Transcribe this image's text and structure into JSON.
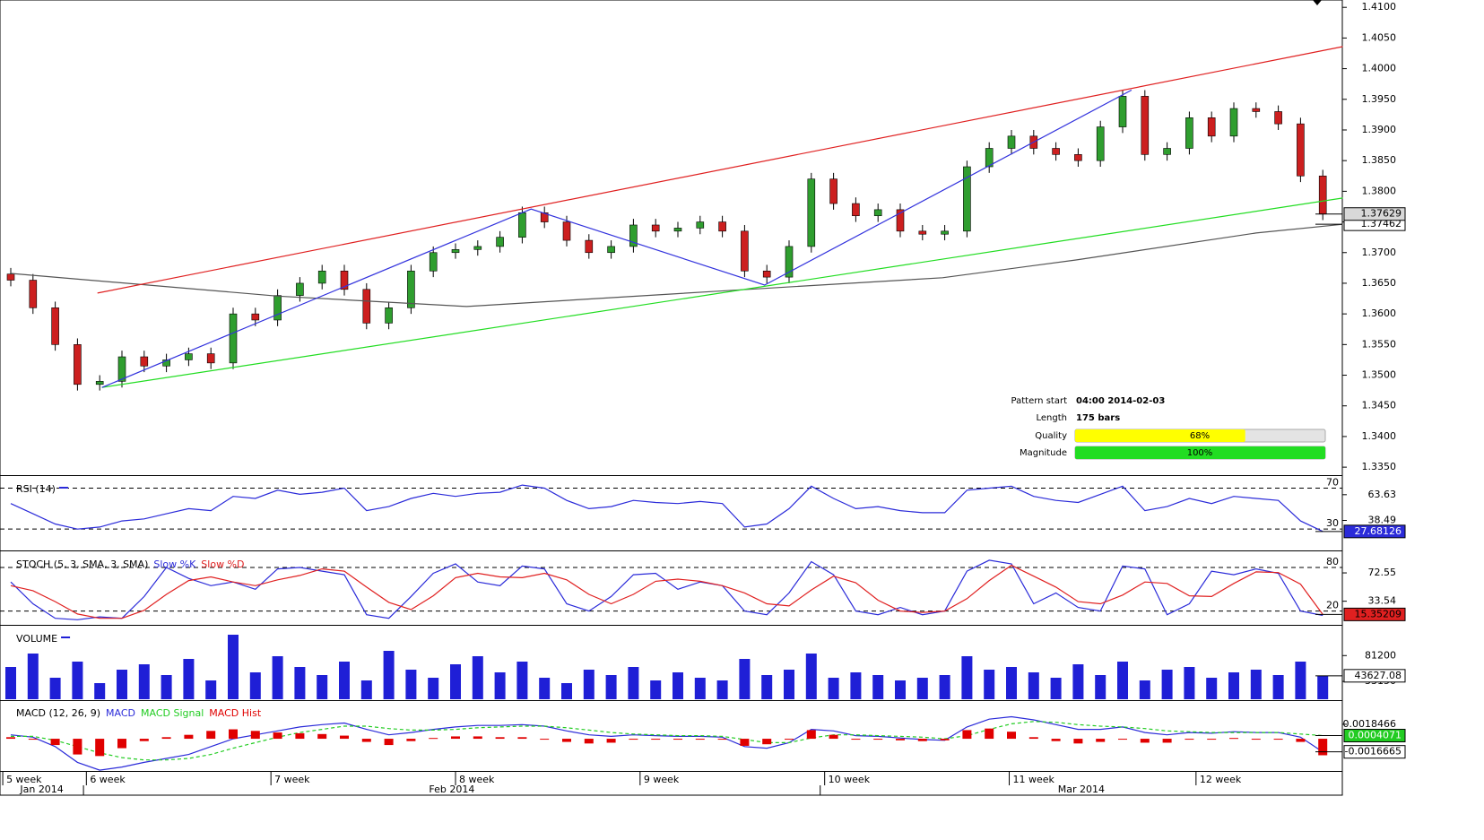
{
  "chart_data": [
    {
      "type": "candlestick",
      "up_color": "#2f9e2f",
      "down_color": "#cc1f1f",
      "open": [
        1.3665,
        1.3655,
        1.361,
        1.355,
        1.3485,
        1.349,
        1.353,
        1.3515,
        1.3525,
        1.3535,
        1.352,
        1.36,
        1.359,
        1.363,
        1.365,
        1.367,
        1.364,
        1.3585,
        1.361,
        1.367,
        1.37,
        1.3705,
        1.371,
        1.3725,
        1.3765,
        1.375,
        1.372,
        1.37,
        1.371,
        1.3745,
        1.3735,
        1.374,
        1.375,
        1.3735,
        1.367,
        1.366,
        1.371,
        1.382,
        1.378,
        1.376,
        1.377,
        1.3735,
        1.373,
        1.3735,
        1.384,
        1.387,
        1.389,
        1.387,
        1.386,
        1.385,
        1.3905,
        1.3955,
        1.386,
        1.387,
        1.392,
        1.389,
        1.3935,
        1.393,
        1.391,
        1.3825
      ],
      "high": [
        1.3675,
        1.3665,
        1.362,
        1.356,
        1.35,
        1.354,
        1.354,
        1.3535,
        1.3545,
        1.3545,
        1.361,
        1.361,
        1.364,
        1.366,
        1.368,
        1.368,
        1.365,
        1.362,
        1.368,
        1.371,
        1.3715,
        1.372,
        1.3735,
        1.3775,
        1.3775,
        1.376,
        1.373,
        1.372,
        1.3755,
        1.3755,
        1.375,
        1.376,
        1.376,
        1.3745,
        1.368,
        1.372,
        1.383,
        1.383,
        1.379,
        1.378,
        1.378,
        1.3745,
        1.3745,
        1.385,
        1.388,
        1.39,
        1.39,
        1.388,
        1.387,
        1.3915,
        1.3965,
        1.3965,
        1.388,
        1.393,
        1.393,
        1.3945,
        1.3945,
        1.394,
        1.392,
        1.3835
      ],
      "low": [
        1.3645,
        1.36,
        1.354,
        1.3475,
        1.3475,
        1.348,
        1.3505,
        1.3505,
        1.3515,
        1.351,
        1.351,
        1.358,
        1.358,
        1.362,
        1.364,
        1.363,
        1.3575,
        1.3575,
        1.36,
        1.366,
        1.369,
        1.3695,
        1.37,
        1.3715,
        1.374,
        1.371,
        1.369,
        1.369,
        1.37,
        1.3725,
        1.3725,
        1.373,
        1.3725,
        1.366,
        1.365,
        1.365,
        1.37,
        1.377,
        1.375,
        1.375,
        1.3725,
        1.372,
        1.372,
        1.3725,
        1.383,
        1.386,
        1.386,
        1.385,
        1.384,
        1.384,
        1.3895,
        1.385,
        1.385,
        1.386,
        1.388,
        1.388,
        1.392,
        1.39,
        1.3815,
        1.3753
      ],
      "close": [
        1.3655,
        1.361,
        1.355,
        1.3485,
        1.349,
        1.353,
        1.3515,
        1.3525,
        1.3535,
        1.352,
        1.36,
        1.359,
        1.363,
        1.365,
        1.367,
        1.364,
        1.3585,
        1.361,
        1.367,
        1.37,
        1.3705,
        1.371,
        1.3725,
        1.3765,
        1.375,
        1.372,
        1.37,
        1.371,
        1.3745,
        1.3735,
        1.374,
        1.375,
        1.3735,
        1.367,
        1.366,
        1.371,
        1.382,
        1.378,
        1.376,
        1.377,
        1.3735,
        1.373,
        1.3735,
        1.384,
        1.387,
        1.389,
        1.387,
        1.386,
        1.385,
        1.3905,
        1.3955,
        1.386,
        1.387,
        1.392,
        1.389,
        1.3935,
        1.393,
        1.391,
        1.3825,
        1.37629
      ],
      "close_box_color": "#d8d8d8",
      "ylim": [
        1.3337,
        1.4112
      ],
      "yticks": [
        {
          "value": 1.41,
          "label": "1.4100"
        },
        {
          "value": 1.405,
          "label": "1.4050"
        },
        {
          "value": 1.4,
          "label": "1.4000"
        },
        {
          "value": 1.395,
          "label": "1.3950"
        },
        {
          "value": 1.39,
          "label": "1.3900"
        },
        {
          "value": 1.385,
          "label": "1.3850"
        },
        {
          "value": 1.38,
          "label": "1.3800"
        },
        {
          "value": 1.375,
          "label": "1.3750"
        },
        {
          "value": 1.37,
          "label": "1.3700"
        },
        {
          "value": 1.365,
          "label": "1.3650"
        },
        {
          "value": 1.36,
          "label": "1.3600"
        },
        {
          "value": 1.355,
          "label": "1.3550"
        },
        {
          "value": 1.35,
          "label": "1.3500"
        },
        {
          "value": 1.345,
          "label": "1.3450"
        },
        {
          "value": 1.34,
          "label": "1.3400"
        },
        {
          "value": 1.335,
          "label": "1.3350"
        }
      ],
      "overlays": [
        {
          "color": "#555555",
          "box_color": "#ffffff",
          "x": [
            0,
            12,
            20.5,
            31.8,
            41.9,
            47.9,
            56,
            59.9
          ],
          "values": [
            1.3666,
            1.3629,
            1.3612,
            1.3637,
            1.3659,
            1.3688,
            1.3732,
            1.37462
          ]
        },
        {
          "color": "#e02020",
          "x": [
            3.9,
            59.9
          ],
          "values": [
            1.3634,
            1.4036
          ]
        },
        {
          "color": "#22dd22",
          "x": [
            4.1,
            59.9
          ],
          "values": [
            1.348,
            1.3789
          ]
        },
        {
          "color": "#3333dd",
          "x": [
            4.1,
            23.4,
            33.9,
            50.4
          ],
          "values": [
            1.348,
            1.3771,
            1.3647,
            1.3965
          ]
        }
      ],
      "pattern": {
        "start_label": "Pattern start",
        "start": "04:00 2014-02-03",
        "length_label": "Length",
        "length": "175 bars",
        "quality_label": "Quality",
        "quality": 68,
        "quality_text": "68%",
        "quality_color": "#ffff00",
        "magnitude_label": "Magnitude",
        "magnitude": 100,
        "magnitude_text": "100%",
        "magnitude_color": "#22dd22"
      }
    },
    {
      "type": "line",
      "title": "RSI (14)",
      "ylim": [
        10,
        81
      ],
      "levels": [
        {
          "value": 70,
          "label": "70"
        },
        {
          "value": 30,
          "label": "30"
        }
      ],
      "yticks": [
        63.63,
        38.49
      ],
      "series": [
        {
          "color": "#2b2bd9",
          "box_color": "#2b2bd9",
          "style": "line",
          "values": [
            55,
            45,
            35,
            30,
            32,
            38,
            40,
            45,
            50,
            48,
            62,
            60,
            68,
            64,
            66,
            70,
            48,
            52,
            60,
            65,
            62,
            65,
            66,
            73,
            70,
            58,
            50,
            52,
            58,
            56,
            55,
            57,
            55,
            32,
            35,
            50,
            72,
            60,
            50,
            52,
            48,
            46,
            46,
            68,
            70,
            72,
            62,
            58,
            56,
            64,
            72,
            48,
            52,
            60,
            55,
            62,
            60,
            58,
            38,
            27.68126
          ]
        }
      ]
    },
    {
      "type": "line",
      "title": "STOCH (5, 3, SMA, 3, SMA)",
      "ylim": [
        1,
        101
      ],
      "levels": [
        {
          "value": 80,
          "label": "80"
        },
        {
          "value": 20,
          "label": "20"
        }
      ],
      "yticks": [
        72.55,
        33.54
      ],
      "series": [
        {
          "name": "Slow %K",
          "color": "#2b2bd9",
          "style": "line",
          "values": [
            60,
            30,
            10,
            8,
            12,
            10,
            40,
            80,
            65,
            55,
            60,
            50,
            78,
            80,
            75,
            70,
            15,
            10,
            40,
            72,
            85,
            60,
            55,
            82,
            78,
            30,
            20,
            40,
            70,
            72,
            50,
            60,
            55,
            20,
            15,
            45,
            88,
            70,
            20,
            15,
            25,
            15,
            20,
            75,
            90,
            85,
            30,
            45,
            25,
            20,
            82,
            78,
            15,
            30,
            75,
            70,
            78,
            72,
            20,
            14
          ]
        },
        {
          "name": "Slow %D",
          "color": "#e02020",
          "box_color": "#e02020",
          "style": "line",
          "values": [
            55,
            48,
            33,
            16,
            10,
            10,
            21,
            43,
            62,
            67,
            60,
            55,
            63,
            69,
            78,
            75,
            53,
            32,
            22,
            41,
            66,
            72,
            67,
            66,
            72,
            63,
            43,
            30,
            43,
            61,
            64,
            61,
            55,
            45,
            30,
            27,
            49,
            68,
            59,
            35,
            20,
            18,
            20,
            37,
            62,
            83,
            68,
            53,
            33,
            30,
            42,
            60,
            58,
            41,
            40,
            58,
            74,
            73,
            57,
            15.35209
          ]
        }
      ]
    },
    {
      "type": "bar",
      "title": "VOLUME",
      "ylim": [
        0,
        135000
      ],
      "yticks": [
        81200,
        33150
      ],
      "series": [
        {
          "color": "#1f1fd6",
          "box_color": "#ffffff",
          "style": "bar",
          "values": [
            60000,
            85000,
            40000,
            70000,
            30000,
            55000,
            65000,
            45000,
            75000,
            35000,
            120000,
            50000,
            80000,
            60000,
            45000,
            70000,
            35000,
            90000,
            55000,
            40000,
            65000,
            80000,
            50000,
            70000,
            40000,
            30000,
            55000,
            45000,
            60000,
            35000,
            50000,
            40000,
            35000,
            75000,
            45000,
            55000,
            85000,
            40000,
            50000,
            45000,
            35000,
            40000,
            45000,
            80000,
            55000,
            60000,
            50000,
            40000,
            65000,
            45000,
            70000,
            35000,
            55000,
            60000,
            40000,
            50000,
            55000,
            45000,
            70000,
            43627.08
          ]
        }
      ]
    },
    {
      "type": "line",
      "title": "MACD (12, 26, 9)",
      "ylim": [
        -0.0041,
        0.0048
      ],
      "yticks": [
        0.0018466
      ],
      "series": [
        {
          "name": "MACD",
          "color": "#2b2bd9",
          "box_color": "#ffffff",
          "style": "line",
          "values": [
            0.0005,
            0.0002,
            -0.001,
            -0.003,
            -0.004,
            -0.0036,
            -0.003,
            -0.0025,
            -0.002,
            -0.001,
            0,
            0.0005,
            0.001,
            0.0015,
            0.0018,
            0.002,
            0.0012,
            0.0005,
            0.0008,
            0.0012,
            0.0015,
            0.0017,
            0.0017,
            0.0018,
            0.0016,
            0.001,
            0.0005,
            0.0003,
            0.0005,
            0.0004,
            0.0003,
            0.0003,
            0.0002,
            -0.001,
            -0.0012,
            -0.0005,
            0.0012,
            0.001,
            0.0004,
            0.0003,
            0.0001,
            -0.0001,
            -0.0002,
            0.0015,
            0.0025,
            0.0028,
            0.0024,
            0.0018,
            0.0012,
            0.0012,
            0.0015,
            0.0008,
            0.0005,
            0.0008,
            0.0007,
            0.0009,
            0.0008,
            0.0008,
            0.0002,
            -0.0016665
          ]
        },
        {
          "name": "MACD Signal",
          "color": "#22cc22",
          "box_color": "#22cc22",
          "style": "dashed",
          "values": [
            0.0003,
            0.0003,
            -0.0002,
            -0.001,
            -0.0018,
            -0.0024,
            -0.0027,
            -0.0027,
            -0.0025,
            -0.002,
            -0.0012,
            -0.0005,
            0.0002,
            0.0008,
            0.0012,
            0.0016,
            0.0016,
            0.0013,
            0.0011,
            0.0011,
            0.0012,
            0.0014,
            0.0015,
            0.0016,
            0.0016,
            0.0014,
            0.0011,
            0.0008,
            0.0006,
            0.0005,
            0.0004,
            0.0004,
            0.0003,
            -0.0001,
            -0.0005,
            -0.0005,
            0.0001,
            0.0005,
            0.0005,
            0.0004,
            0.0003,
            0.0002,
            0,
            0.0004,
            0.0012,
            0.0019,
            0.0022,
            0.0021,
            0.0018,
            0.0016,
            0.0015,
            0.0013,
            0.001,
            0.0009,
            0.0008,
            0.0008,
            0.0008,
            0.0008,
            0.0006,
            0.0004071
          ]
        },
        {
          "name": "MACD Hist",
          "color": "#e00000",
          "style": "bar",
          "values": [
            0.0002,
            -0.0001,
            -0.0008,
            -0.002,
            -0.0022,
            -0.0012,
            -0.0003,
            0.0002,
            0.0005,
            0.001,
            0.0012,
            0.001,
            0.0008,
            0.0007,
            0.0006,
            0.0004,
            -0.0004,
            -0.0008,
            -0.0003,
            0.0001,
            0.0003,
            0.0003,
            0.0002,
            0.0002,
            0,
            -0.0004,
            -0.0006,
            -0.0005,
            -0.0001,
            -0.0001,
            -0.0001,
            -0.0001,
            -0.0001,
            -0.0009,
            -0.0007,
            0,
            0.0011,
            0.0005,
            -0.0001,
            -0.0001,
            -0.0002,
            -0.0003,
            -0.0002,
            0.0011,
            0.0013,
            0.0009,
            0.0002,
            -0.0003,
            -0.0006,
            -0.0004,
            0,
            -0.0005,
            -0.0005,
            -0.0001,
            -0.0001,
            0.0001,
            0,
            0,
            -0.0004,
            -0.0021
          ]
        }
      ]
    }
  ],
  "time_axis": {
    "weeks": [
      {
        "value": -0.36,
        "label": "5 week"
      },
      {
        "value": 3.4,
        "label": "6 week"
      },
      {
        "value": 11.7,
        "label": "7 week"
      },
      {
        "value": 20,
        "label": "8 week"
      },
      {
        "value": 28.3,
        "label": "9 week"
      },
      {
        "value": 36.6,
        "label": "10 week"
      },
      {
        "value": 44.9,
        "label": "11 week"
      },
      {
        "value": 53.3,
        "label": "12 week"
      }
    ],
    "months": [
      {
        "value": -0.48,
        "label": "Jan 2014"
      },
      {
        "value": 3.27,
        "label": "Feb 2014"
      },
      {
        "value": 36.4,
        "label": "Mar 2014"
      }
    ]
  }
}
